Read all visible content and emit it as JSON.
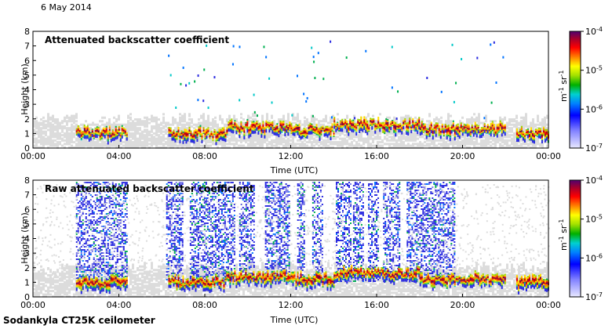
{
  "date": "6 May 2014",
  "footer": "Sodankyla CT25K ceilometer",
  "colors": {
    "background_gray": "#dcdcdc",
    "plot_bg": "#ffffff",
    "scale": [
      "#d8d8f8",
      "#7b7be8",
      "#2a2ae0",
      "#0073ff",
      "#00c8c8",
      "#00b050",
      "#9ad800",
      "#ffe000",
      "#ff8000",
      "#e00000",
      "#8a0030",
      "#4a0070"
    ]
  },
  "chart_data": [
    {
      "type": "heatmap",
      "title": "Attenuated backscatter coefficient",
      "xlabel": "Time (UTC)",
      "ylabel": "Height (km)",
      "x_ticks": [
        "00:00",
        "04:00",
        "08:00",
        "12:00",
        "16:00",
        "20:00",
        "00:00"
      ],
      "xlim_hours": [
        0,
        24
      ],
      "y_ticks": [
        "0",
        "1",
        "2",
        "3",
        "4",
        "5",
        "6",
        "7",
        "8"
      ],
      "ylim": [
        0,
        8
      ],
      "colorbar": {
        "ticks": [
          "10",
          "10",
          "10",
          "10"
        ],
        "exponents": [
          "-4",
          "-5",
          "-6",
          "-7"
        ],
        "unit_base": [
          "m",
          "sr"
        ],
        "unit_exponents": [
          "-1",
          "-1"
        ],
        "scale": "log",
        "range": [
          1e-07,
          0.0001
        ]
      },
      "cloud_layer_hours": [
        [
          2.0,
          4.4,
          1.05
        ],
        [
          6.3,
          9.0,
          1.0
        ],
        [
          9.0,
          12.0,
          1.4
        ],
        [
          12.0,
          14.0,
          1.2
        ],
        [
          14.0,
          18.0,
          1.6
        ],
        [
          18.0,
          22.0,
          1.3
        ],
        [
          22.5,
          24.0,
          1.0
        ]
      ]
    },
    {
      "type": "heatmap",
      "title": "Raw attenuated backscatter coefficient",
      "xlabel": "Time (UTC)",
      "ylabel": "Height (km)",
      "x_ticks": [
        "00:00",
        "04:00",
        "08:00",
        "12:00",
        "16:00",
        "20:00",
        "00:00"
      ],
      "xlim_hours": [
        0,
        24
      ],
      "y_ticks": [
        "0",
        "1",
        "2",
        "3",
        "4",
        "5",
        "6",
        "7",
        "8"
      ],
      "ylim": [
        0,
        8
      ],
      "colorbar": {
        "ticks": [
          "10",
          "10",
          "10",
          "10"
        ],
        "exponents": [
          "-4",
          "-5",
          "-6",
          "-7"
        ],
        "unit_base": [
          "m",
          "sr"
        ],
        "unit_exponents": [
          "-1",
          "-1"
        ],
        "scale": "log",
        "range": [
          1e-07,
          0.0001
        ]
      },
      "cloud_layer_hours": [
        [
          2.0,
          4.4,
          1.0
        ],
        [
          6.3,
          9.0,
          1.0
        ],
        [
          9.0,
          12.0,
          1.4
        ],
        [
          12.0,
          14.0,
          1.2
        ],
        [
          14.0,
          18.0,
          1.6
        ],
        [
          18.0,
          22.0,
          1.2
        ],
        [
          22.5,
          24.0,
          1.0
        ]
      ],
      "noise_column_hours": [
        [
          2.0,
          4.4
        ],
        [
          6.2,
          7.0
        ],
        [
          7.3,
          9.4
        ],
        [
          9.6,
          10.3
        ],
        [
          10.8,
          11.9
        ],
        [
          12.3,
          12.6
        ],
        [
          13.0,
          13.5
        ],
        [
          14.1,
          14.8
        ],
        [
          14.9,
          15.4
        ],
        [
          15.6,
          16.1
        ],
        [
          16.3,
          17.1
        ],
        [
          17.4,
          19.6
        ]
      ]
    }
  ]
}
